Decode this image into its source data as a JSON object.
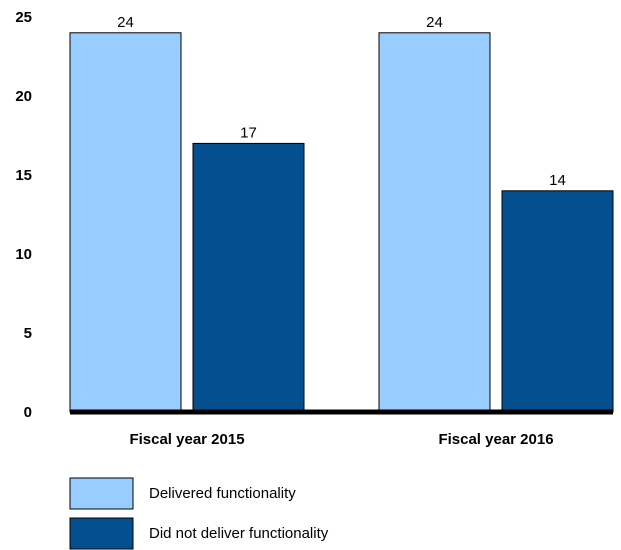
{
  "chart_data": {
    "type": "bar",
    "categories": [
      "Fiscal year 2015",
      "Fiscal year 2016"
    ],
    "series": [
      {
        "name": "Delivered functionality",
        "values": [
          24,
          24
        ],
        "color": "#99ccff"
      },
      {
        "name": "Did not deliver functionality",
        "values": [
          17,
          14
        ],
        "color": "#044f8f"
      }
    ],
    "ylim": [
      0,
      25
    ],
    "yticks": [
      "0",
      "5",
      "10",
      "15",
      "20",
      "25"
    ],
    "grid": false,
    "legend_position": "bottom-left"
  }
}
